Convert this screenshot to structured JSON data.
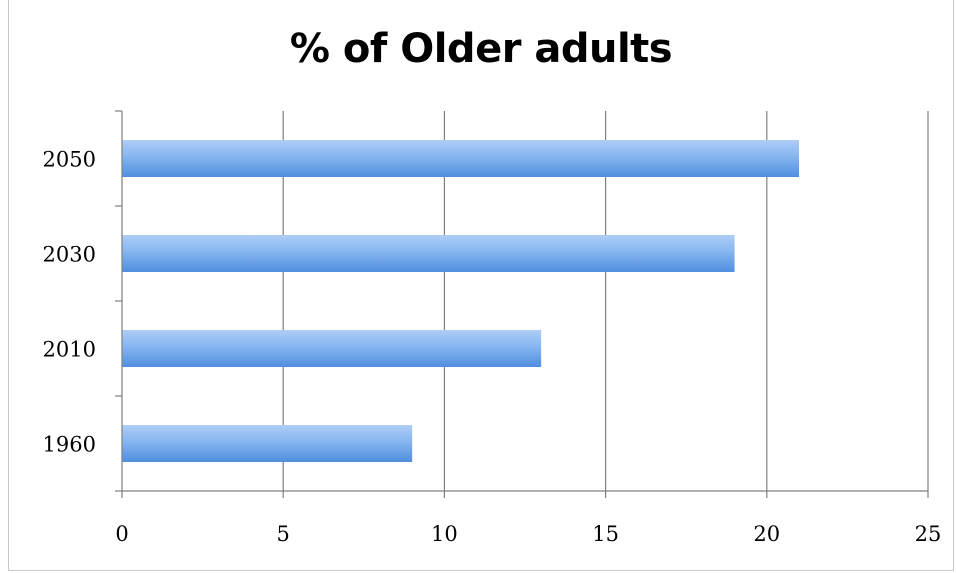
{
  "chart_data": {
    "type": "bar",
    "orientation": "horizontal",
    "title": "% of Older adults",
    "categories": [
      "2050",
      "2030",
      "2010",
      "1960"
    ],
    "values": [
      21,
      19,
      13,
      9
    ],
    "xlim": [
      0,
      25
    ],
    "xticks": [
      "0",
      "5",
      "10",
      "15",
      "20",
      "25"
    ],
    "grid": "vertical",
    "legend": "none",
    "bar_color": "#6aa3e8"
  }
}
